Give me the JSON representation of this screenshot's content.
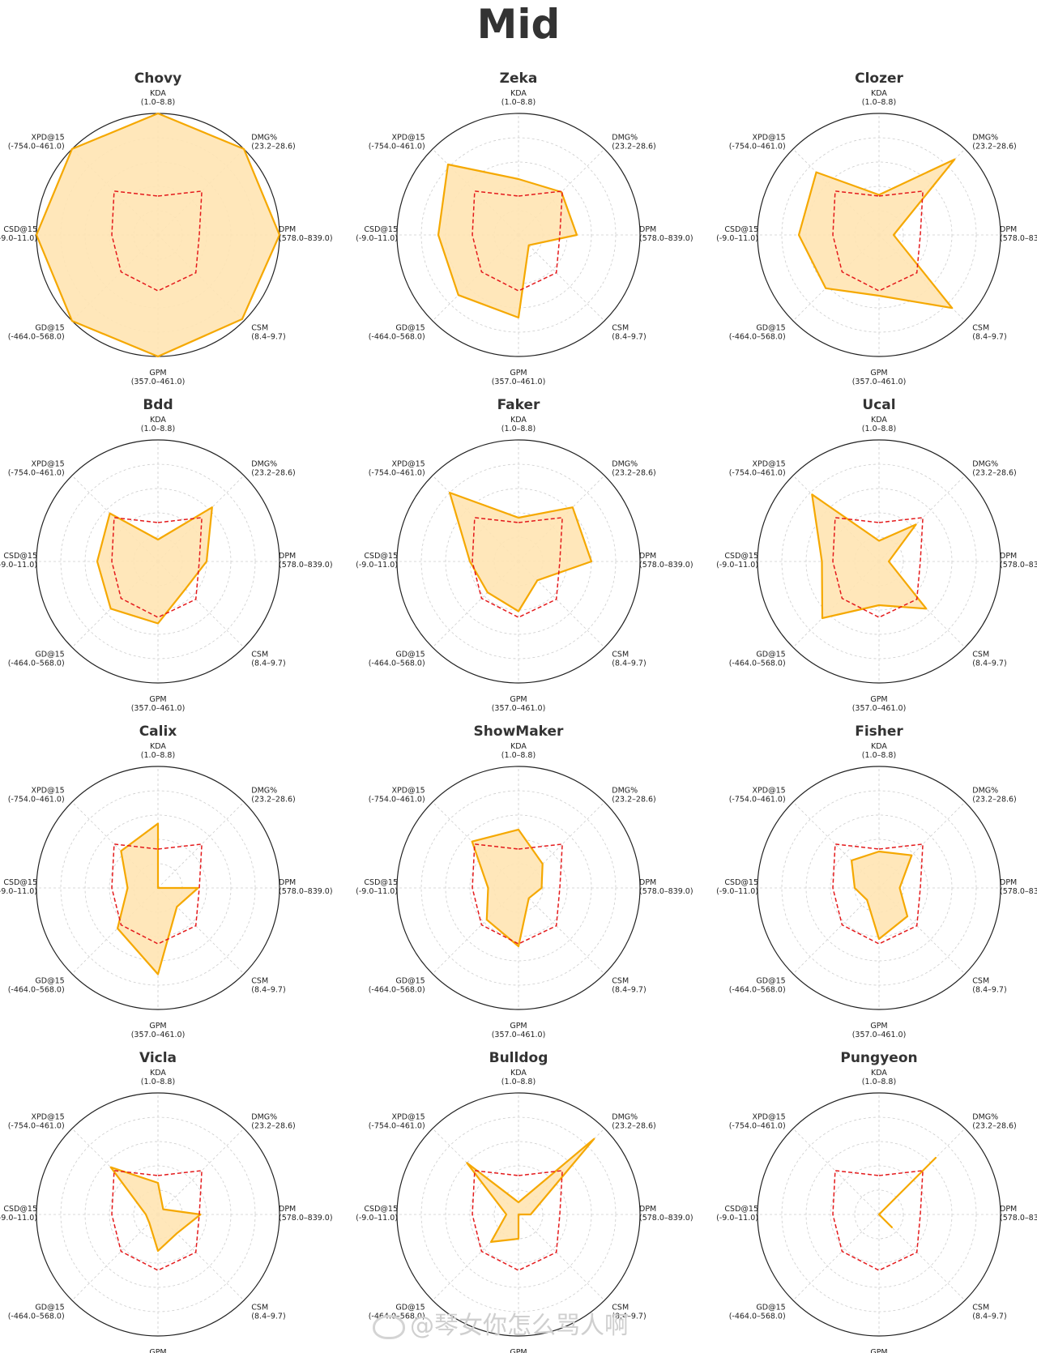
{
  "title": "Mid",
  "watermark": "@琴女你怎么骂人啊",
  "colors": {
    "player_line": "#f5a800",
    "player_fill": "#ffe4b3",
    "average_line": "#e41a1c",
    "outer_circle": "#222222",
    "grid": "#cccccc"
  },
  "axes": [
    "KDA",
    "DMG%",
    "DPM",
    "CSM",
    "GPM",
    "GD@15",
    "CSD@15",
    "XPD@15"
  ],
  "ranges": [
    "(1.0–8.8)",
    "(23.2–28.6)",
    "(578.0–839.0)",
    "(8.4–9.7)",
    "(357.0–461.0)",
    "(-464.0–568.0)",
    "(-9.0–11.0)",
    "(-754.0–461.0)"
  ],
  "chart_data": {
    "type": "radar",
    "scale": "each axis normalized between its printed range; values given as fraction of axis",
    "average": [
      0.32,
      0.51,
      0.34,
      0.44,
      0.46,
      0.43,
      0.38,
      0.51
    ],
    "players": [
      {
        "name": "Chovy",
        "values": [
          1.0,
          1.0,
          1.0,
          0.98,
          1.0,
          1.0,
          1.0,
          1.0
        ]
      },
      {
        "name": "Zeka",
        "values": [
          0.46,
          0.5,
          0.48,
          0.12,
          0.68,
          0.7,
          0.66,
          0.82
        ]
      },
      {
        "name": "Clozer",
        "values": [
          0.33,
          0.88,
          0.12,
          0.85,
          0.5,
          0.62,
          0.66,
          0.73
        ]
      },
      {
        "name": "Bdd",
        "values": [
          0.18,
          0.63,
          0.4,
          0.32,
          0.51,
          0.55,
          0.5,
          0.56
        ]
      },
      {
        "name": "Faker",
        "values": [
          0.36,
          0.63,
          0.6,
          0.22,
          0.41,
          0.36,
          0.4,
          0.8
        ]
      },
      {
        "name": "Ucal",
        "values": [
          0.17,
          0.43,
          0.08,
          0.55,
          0.36,
          0.66,
          0.47,
          0.78
        ]
      },
      {
        "name": "Calix",
        "values": [
          0.53,
          0.0,
          0.33,
          0.22,
          0.71,
          0.47,
          0.25,
          0.43
        ]
      },
      {
        "name": "ShowMaker",
        "values": [
          0.48,
          0.28,
          0.19,
          0.12,
          0.48,
          0.37,
          0.25,
          0.54
        ]
      },
      {
        "name": "Fisher",
        "values": [
          0.3,
          0.38,
          0.17,
          0.33,
          0.42,
          0.14,
          0.2,
          0.32
        ]
      },
      {
        "name": "Vicla",
        "values": [
          0.26,
          0.06,
          0.35,
          0.22,
          0.3,
          0.1,
          0.1,
          0.55
        ]
      },
      {
        "name": "Bulldog",
        "values": [
          0.1,
          0.88,
          0.1,
          0.0,
          0.2,
          0.32,
          0.1,
          0.6
        ]
      },
      {
        "name": "Pungyeon",
        "values": [
          0.0,
          0.66,
          0.0,
          0.15,
          0.0,
          0.0,
          0.0,
          0.0
        ]
      }
    ]
  }
}
